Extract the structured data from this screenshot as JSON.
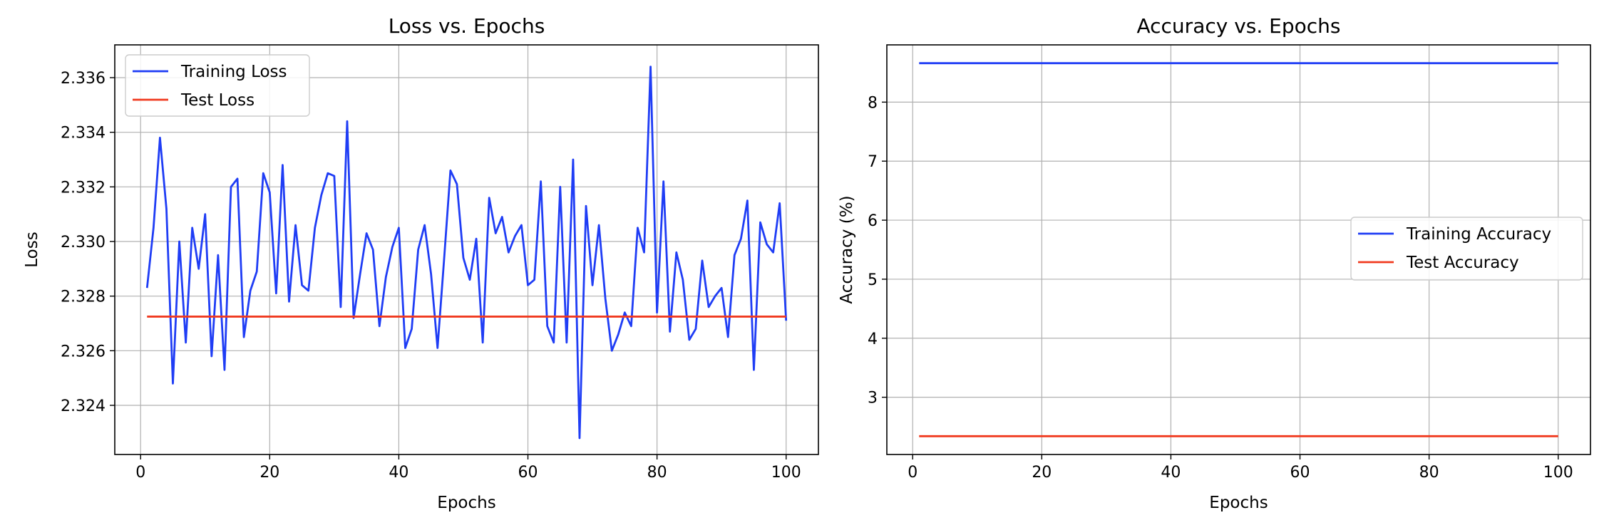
{
  "colors": {
    "training": "#1f3df5",
    "test": "#f03a1f",
    "grid": "#b0b0b0"
  },
  "chart_data": [
    {
      "type": "line",
      "title": "Loss vs. Epochs",
      "xlabel": "Epochs",
      "ylabel": "Loss",
      "xlim": [
        -4,
        105
      ],
      "ylim": [
        2.3222,
        2.3372
      ],
      "xticks": [
        0,
        20,
        40,
        60,
        80,
        100
      ],
      "yticks": [
        2.324,
        2.326,
        2.328,
        2.33,
        2.332,
        2.334,
        2.336
      ],
      "ytick_labels": [
        "2.324",
        "2.326",
        "2.328",
        "2.330",
        "2.332",
        "2.334",
        "2.336"
      ],
      "grid": true,
      "legend_position": "top-left",
      "series": [
        {
          "name": "Training Loss",
          "color": "training",
          "x_start": 1,
          "x_step": 1,
          "values": [
            2.3283,
            2.3305,
            2.3338,
            2.3312,
            2.3248,
            2.33,
            2.3263,
            2.3305,
            2.329,
            2.331,
            2.3258,
            2.3295,
            2.3253,
            2.332,
            2.3323,
            2.3265,
            2.3282,
            2.3289,
            2.3325,
            2.3318,
            2.3281,
            2.3328,
            2.3278,
            2.3306,
            2.3284,
            2.3282,
            2.3305,
            2.3317,
            2.3325,
            2.3324,
            2.3276,
            2.3344,
            2.3272,
            2.3288,
            2.3303,
            2.3297,
            2.3269,
            2.3287,
            2.3298,
            2.3305,
            2.3261,
            2.3268,
            2.3297,
            2.3306,
            2.3288,
            2.3261,
            2.3293,
            2.3326,
            2.3321,
            2.3294,
            2.3286,
            2.3301,
            2.3263,
            2.3316,
            2.3303,
            2.3309,
            2.3296,
            2.3302,
            2.3306,
            2.3284,
            2.3286,
            2.3322,
            2.3269,
            2.3263,
            2.332,
            2.3263,
            2.333,
            2.3228,
            2.3313,
            2.3284,
            2.3306,
            2.3279,
            2.326,
            2.3266,
            2.3274,
            2.3269,
            2.3305,
            2.3296,
            2.3364,
            2.3274,
            2.3322,
            2.3267,
            2.3296,
            2.3286,
            2.3264,
            2.3268,
            2.3293,
            2.3276,
            2.328,
            2.3283,
            2.3265,
            2.3295,
            2.3301,
            2.3315,
            2.3253,
            2.3307,
            2.3299,
            2.3296,
            2.3314,
            2.3271
          ]
        },
        {
          "name": "Test Loss",
          "color": "test",
          "x_start": 1,
          "x_step": 1,
          "constant": 2.32725,
          "count": 100
        }
      ]
    },
    {
      "type": "line",
      "title": "Accuracy vs. Epochs",
      "xlabel": "Epochs",
      "ylabel": "Accuracy (%)",
      "xlim": [
        -4,
        105
      ],
      "ylim": [
        2.03,
        8.97
      ],
      "xticks": [
        0,
        20,
        40,
        60,
        80,
        100
      ],
      "yticks": [
        3,
        4,
        5,
        6,
        7,
        8
      ],
      "ytick_labels": [
        "3",
        "4",
        "5",
        "6",
        "7",
        "8"
      ],
      "grid": true,
      "legend_position": "center-right",
      "series": [
        {
          "name": "Training Accuracy",
          "color": "training",
          "x_start": 1,
          "x_step": 1,
          "constant": 8.66,
          "count": 100
        },
        {
          "name": "Test Accuracy",
          "color": "test",
          "x_start": 1,
          "x_step": 1,
          "constant": 2.34,
          "count": 100
        }
      ]
    }
  ]
}
